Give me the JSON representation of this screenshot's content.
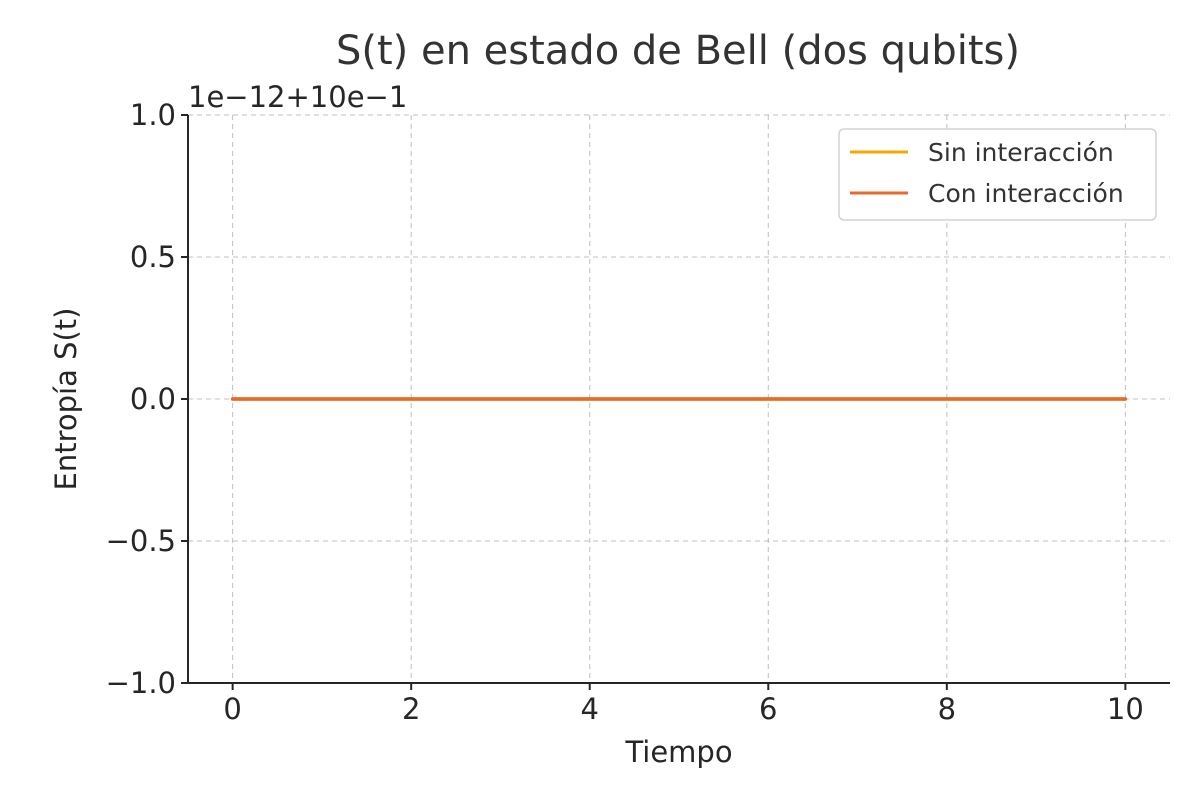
{
  "chart_data": {
    "type": "line",
    "title": "S(t) en estado de Bell (dos qubits)",
    "xlabel": "Tiempo",
    "ylabel": "Entropía S(t)",
    "offset_text": "1e−12+10e−1",
    "xlim": [
      -0.5,
      10.5
    ],
    "ylim": [
      -1.0,
      1.0
    ],
    "xticks": [
      0,
      2,
      4,
      6,
      8,
      10
    ],
    "xtick_labels": [
      "0",
      "2",
      "4",
      "6",
      "8",
      "10"
    ],
    "yticks": [
      -1.0,
      -0.5,
      0.0,
      0.5,
      1.0
    ],
    "ytick_labels": [
      "−1.0",
      "−0.5",
      "0.0",
      "0.5",
      "1.0"
    ],
    "grid": true,
    "legend_position": "top-right",
    "x": [
      0,
      1,
      2,
      3,
      4,
      5,
      6,
      7,
      8,
      9,
      10
    ],
    "series": [
      {
        "name": "Sin interacción",
        "color": "#f5a800",
        "values": [
          0,
          0,
          0,
          0,
          0,
          0,
          0,
          0,
          0,
          0,
          0
        ]
      },
      {
        "name": "Con interacción",
        "color": "#e8692a",
        "values": [
          0,
          0,
          0,
          0,
          0,
          0,
          0,
          0,
          0,
          0,
          0
        ]
      }
    ]
  }
}
